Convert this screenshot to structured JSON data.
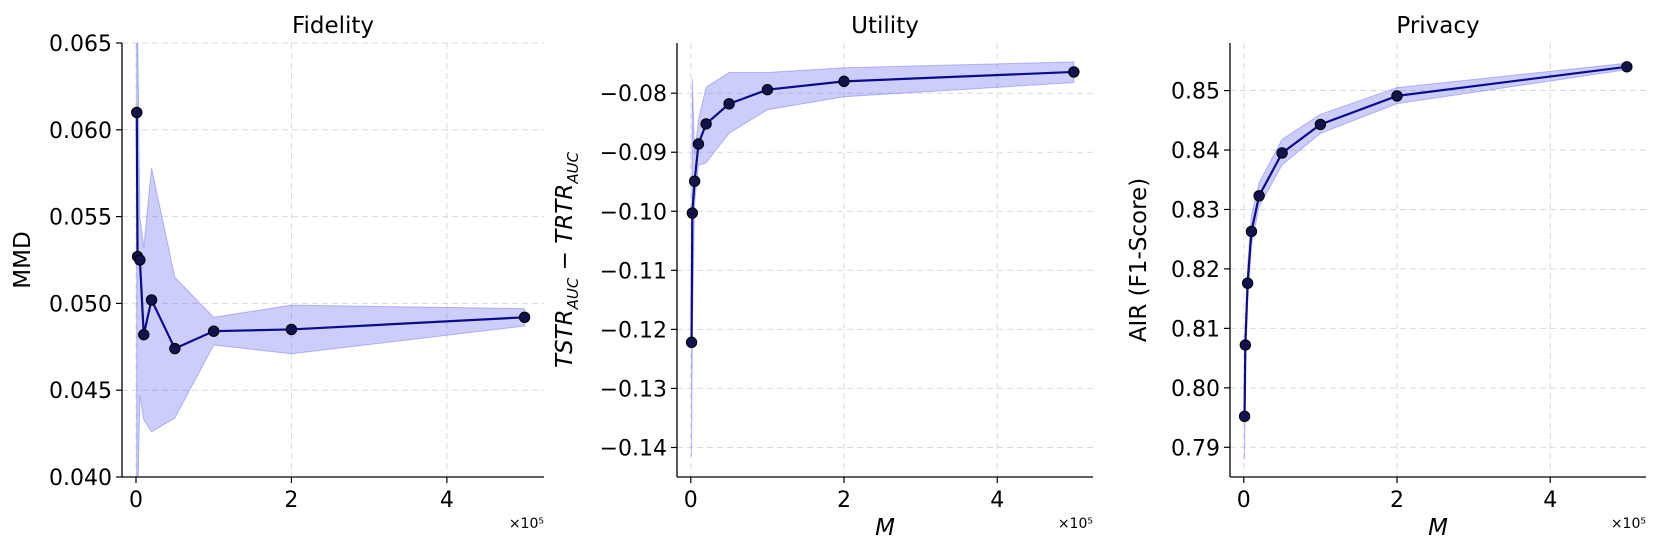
{
  "chart_data": [
    {
      "type": "line",
      "title": "Fidelity",
      "ylabel": "MMD",
      "xlabel": "",
      "x_multiplier": "×10⁵",
      "xlim": [
        -0.18,
        5.25
      ],
      "ylim": [
        0.04,
        0.065
      ],
      "xticks": [
        0,
        2,
        4
      ],
      "xtick_labels": [
        "0",
        "2",
        "4"
      ],
      "yticks": [
        0.04,
        0.045,
        0.05,
        0.055,
        0.06,
        0.065
      ],
      "ytick_labels": [
        "0.040",
        "0.045",
        "0.050",
        "0.055",
        "0.060",
        "0.065"
      ],
      "grid": true,
      "series": [
        {
          "x": [
            0.01,
            0.02,
            0.05,
            0.1,
            0.2,
            0.5,
            1,
            2,
            5
          ],
          "values": [
            0.061,
            0.0527,
            0.0525,
            0.0482,
            0.0502,
            0.0474,
            0.0484,
            0.0485,
            0.0492
          ],
          "lower": [
            0.04,
            0.038,
            0.0447,
            0.0433,
            0.0426,
            0.0434,
            0.0476,
            0.0471,
            0.0487
          ],
          "upper": [
            0.068,
            0.0663,
            0.055,
            0.0532,
            0.0578,
            0.0515,
            0.0492,
            0.0499,
            0.0497
          ]
        }
      ]
    },
    {
      "type": "line",
      "title": "Utility",
      "ylabel": "TSTR_AUC − TRTR_AUC",
      "ylabel_parts": {
        "a": "TSTR",
        "a_sub": "AUC",
        "op": " − ",
        "b": "TRTR",
        "b_sub": "AUC"
      },
      "xlabel": "M",
      "x_multiplier": "×10⁵",
      "xlim": [
        -0.18,
        5.25
      ],
      "ylim": [
        -0.145,
        -0.0715
      ],
      "xticks": [
        0,
        2,
        4
      ],
      "xtick_labels": [
        "0",
        "2",
        "4"
      ],
      "yticks": [
        -0.14,
        -0.13,
        -0.12,
        -0.11,
        -0.1,
        -0.09,
        -0.08
      ],
      "ytick_labels": [
        "−0.14",
        "−0.13",
        "−0.12",
        "−0.11",
        "−0.10",
        "−0.09",
        "−0.08"
      ],
      "grid": true,
      "series": [
        {
          "x": [
            0.01,
            0.02,
            0.05,
            0.1,
            0.2,
            0.5,
            1,
            2,
            5
          ],
          "values": [
            -0.1222,
            -0.1003,
            -0.0949,
            -0.0886,
            -0.0852,
            -0.0818,
            -0.0794,
            -0.078,
            -0.0764
          ],
          "lower": [
            -0.1415,
            -0.1205,
            -0.0985,
            -0.0922,
            -0.0918,
            -0.0868,
            -0.0828,
            -0.0806,
            -0.0782
          ],
          "upper": [
            -0.113,
            -0.0775,
            -0.0905,
            -0.0845,
            -0.079,
            -0.0765,
            -0.0765,
            -0.0757,
            -0.0747
          ]
        }
      ]
    },
    {
      "type": "line",
      "title": "Privacy",
      "ylabel": "AIR (F1-Score)",
      "xlabel": "M",
      "x_multiplier": "×10⁵",
      "xlim": [
        -0.18,
        5.25
      ],
      "ylim": [
        0.785,
        0.858
      ],
      "xticks": [
        0,
        2,
        4
      ],
      "xtick_labels": [
        "0",
        "2",
        "4"
      ],
      "yticks": [
        0.79,
        0.8,
        0.81,
        0.82,
        0.83,
        0.84,
        0.85
      ],
      "ytick_labels": [
        "0.79",
        "0.80",
        "0.81",
        "0.82",
        "0.83",
        "0.84",
        "0.85"
      ],
      "grid": true,
      "series": [
        {
          "x": [
            0.01,
            0.02,
            0.05,
            0.1,
            0.2,
            0.5,
            1,
            2,
            5
          ],
          "values": [
            0.7952,
            0.8072,
            0.8176,
            0.8263,
            0.8323,
            0.8395,
            0.8443,
            0.8491,
            0.854
          ],
          "lower": [
            0.788,
            0.803,
            0.8145,
            0.824,
            0.8305,
            0.8375,
            0.8428,
            0.8478,
            0.8535
          ],
          "upper": [
            0.801,
            0.8105,
            0.8205,
            0.829,
            0.8345,
            0.8418,
            0.846,
            0.8505,
            0.8546
          ]
        }
      ]
    }
  ]
}
